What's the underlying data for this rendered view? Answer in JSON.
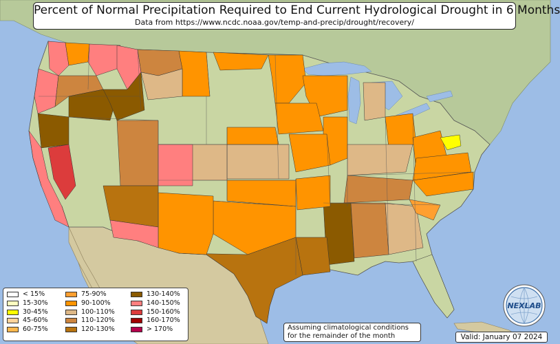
{
  "title": "Percent of Normal Precipitation Required to End Current Hydrological Drought in 6 Months",
  "subtitle": "Data from https://www.ncdc.noaa.gov/temp-and-precip/drought/recovery/",
  "legend": {
    "items": [
      {
        "label": "< 15%",
        "color": "#ffffff"
      },
      {
        "label": "15-30%",
        "color": "#ffffc0"
      },
      {
        "label": "30-45%",
        "color": "#ffff00"
      },
      {
        "label": "45-60%",
        "color": "#ffd39b"
      },
      {
        "label": "60-75%",
        "color": "#ffb74d"
      },
      {
        "label": "75-90%",
        "color": "#ff9f30"
      },
      {
        "label": "90-100%",
        "color": "#ff9400"
      },
      {
        "label": "100-110%",
        "color": "#deb887"
      },
      {
        "label": "110-120%",
        "color": "#cd853f"
      },
      {
        "label": "120-130%",
        "color": "#b8730f"
      },
      {
        "label": "130-140%",
        "color": "#8b5a00"
      },
      {
        "label": "140-150%",
        "color": "#ff7f7f"
      },
      {
        "label": "150-160%",
        "color": "#dc3c3c"
      },
      {
        "label": "160-170%",
        "color": "#a00000"
      },
      {
        "label": "> 170%",
        "color": "#b4004b"
      }
    ]
  },
  "note": {
    "line1": "Assuming climatological conditions",
    "line2": "for the remainder of the month"
  },
  "valid": "Valid: January 07 2024",
  "logo": {
    "text": "NEXLAB",
    "icon": "globe-logo"
  },
  "colors": {
    "ocean": "#9dbde6",
    "land": "#c9d6a3",
    "canada": "#b7c99a",
    "mexico": "#d4c9a0"
  }
}
